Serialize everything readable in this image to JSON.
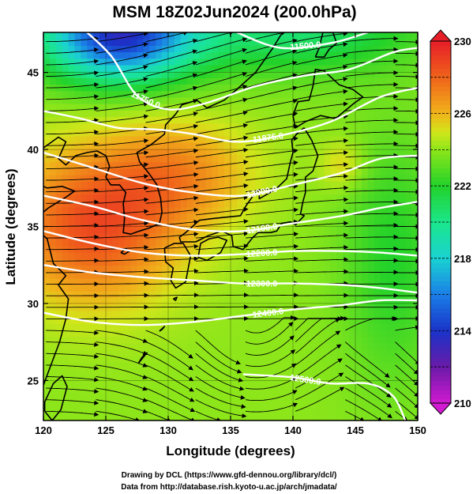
{
  "title": "MSM 18Z02Jun2024 (200.0hPa)",
  "xlabel": "Longitude (degrees)",
  "ylabel": "Latitude  (degrees)",
  "footer": {
    "line1": "Drawing by DCL (https://www.gfd-dennou.org/library/dcl/)",
    "line2": "Data from http://database.rish.kyoto-u.ac.jp/arch/jmadata/"
  },
  "chart_data": {
    "type": "heatmap",
    "title": "MSM 18Z02Jun2024 (200.0hPa)",
    "xlabel": "Longitude (degrees)",
    "ylabel": "Latitude  (degrees)",
    "xlim": [
      120,
      150
    ],
    "ylim": [
      22.4,
      47.6
    ],
    "x_ticks": [
      120,
      125,
      130,
      135,
      140,
      145,
      150
    ],
    "y_ticks": [
      25,
      30,
      35,
      40,
      45
    ],
    "colorbar": {
      "min": 210,
      "max": 230,
      "ticks": [
        210,
        214,
        218,
        222,
        226,
        230
      ],
      "stops": [
        {
          "value": 210,
          "color": "#d21ad2"
        },
        {
          "value": 212,
          "color": "#6a1aa8"
        },
        {
          "value": 214,
          "color": "#1a32c8"
        },
        {
          "value": 216,
          "color": "#1a7ee6"
        },
        {
          "value": 218,
          "color": "#1ad2d2"
        },
        {
          "value": 220,
          "color": "#1ae68c"
        },
        {
          "value": 222,
          "color": "#22d22a"
        },
        {
          "value": 224,
          "color": "#8ce61a"
        },
        {
          "value": 225,
          "color": "#d2e61a"
        },
        {
          "value": 226,
          "color": "#f0b41a"
        },
        {
          "value": 228,
          "color": "#f0641a"
        },
        {
          "value": 230,
          "color": "#e61e28"
        }
      ]
    },
    "temperature_field": {
      "base": 224,
      "features": [
        {
          "name": "warm-ridge",
          "lon": 124,
          "lat": 35,
          "amplitude": 4.6,
          "sigma_lon": 7,
          "sigma_lat": 5
        },
        {
          "name": "warm-ridge-east",
          "lon": 131,
          "lat": 38.5,
          "amplitude": 2.6,
          "sigma_lon": 6,
          "sigma_lat": 3.5
        },
        {
          "name": "cold-trough",
          "lon": 126,
          "lat": 47.5,
          "amplitude": -10,
          "sigma_lon": 6,
          "sigma_lat": 3
        },
        {
          "name": "cold-north",
          "lon": 140,
          "lat": 48,
          "amplitude": -3.5,
          "sigma_lon": 10,
          "sigma_lat": 3
        },
        {
          "name": "cool-east",
          "lon": 148,
          "lat": 33,
          "amplitude": -2,
          "sigma_lon": 4,
          "sigma_lat": 8
        },
        {
          "name": "warm-spot-east",
          "lon": 144,
          "lat": 39,
          "amplitude": 1.6,
          "sigma_lon": 1.8,
          "sigma_lat": 1.6
        }
      ]
    },
    "height_contours": [
      {
        "label": "11500.0",
        "points": [
          [
            135.5,
            47.6
          ],
          [
            139,
            46.6
          ],
          [
            143,
            46.9
          ],
          [
            146,
            47.6
          ]
        ]
      },
      {
        "label": "11750.0",
        "points": [
          [
            123.5,
            47.6
          ],
          [
            125.5,
            46
          ],
          [
            127.5,
            43.5
          ],
          [
            130,
            42.6
          ],
          [
            133,
            43
          ],
          [
            137,
            44.1
          ],
          [
            141,
            44.8
          ],
          [
            144.5,
            45.2
          ],
          [
            148,
            46.3
          ],
          [
            150,
            46.6
          ]
        ]
      },
      {
        "label": "11875.0",
        "points": [
          [
            120,
            42.5
          ],
          [
            123,
            42
          ],
          [
            126,
            41.4
          ],
          [
            129,
            41.3
          ],
          [
            132,
            41
          ],
          [
            135.5,
            40.5
          ],
          [
            139,
            40.9
          ],
          [
            143,
            41.8
          ],
          [
            147,
            43.4
          ],
          [
            150,
            44
          ]
        ]
      },
      {
        "label": "12000.0",
        "points": [
          [
            120,
            39.8
          ],
          [
            124,
            38.8
          ],
          [
            128,
            37.8
          ],
          [
            132,
            37.2
          ],
          [
            136,
            37
          ],
          [
            140,
            37.7
          ],
          [
            144,
            38.5
          ],
          [
            147,
            39.4
          ],
          [
            150,
            39.6
          ]
        ]
      },
      {
        "label": "12100.0",
        "points": [
          [
            120,
            37
          ],
          [
            124,
            36.3
          ],
          [
            128,
            35.4
          ],
          [
            132,
            34.8
          ],
          [
            136,
            34.7
          ],
          [
            140,
            35.2
          ],
          [
            144,
            35.7
          ],
          [
            147,
            36.2
          ],
          [
            150,
            36.6
          ]
        ]
      },
      {
        "label": "12200.0",
        "points": [
          [
            120,
            34.7
          ],
          [
            124,
            33.9
          ],
          [
            128,
            33.3
          ],
          [
            132,
            33.1
          ],
          [
            136,
            33.2
          ],
          [
            140,
            33.4
          ],
          [
            144,
            33.4
          ],
          [
            147,
            33.3
          ],
          [
            150,
            33.1
          ]
        ]
      },
      {
        "label": "12300.0",
        "points": [
          [
            120,
            32.5
          ],
          [
            124,
            32
          ],
          [
            128,
            31.7
          ],
          [
            132,
            31.5
          ],
          [
            136,
            31.3
          ],
          [
            140,
            31.3
          ],
          [
            144,
            31.2
          ],
          [
            147,
            31
          ],
          [
            150,
            30.7
          ]
        ]
      },
      {
        "label": "12400.0",
        "points": [
          [
            120,
            29.4
          ],
          [
            124,
            28.8
          ],
          [
            128,
            28.6
          ],
          [
            132,
            28.8
          ],
          [
            136,
            29.2
          ],
          [
            140,
            29.6
          ],
          [
            144,
            29.9
          ],
          [
            147,
            30.2
          ],
          [
            150,
            30.2
          ]
        ]
      },
      {
        "label": "12500.0",
        "points": [
          [
            136,
            25.4
          ],
          [
            140,
            25.2
          ],
          [
            143,
            24.8
          ],
          [
            146,
            24.8
          ],
          [
            148,
            24
          ],
          [
            149,
            22.4
          ]
        ]
      }
    ],
    "wind_field": {
      "jet_axis": [
        [
          120,
          41.5
        ],
        [
          126,
          40.5
        ],
        [
          132,
          39.8
        ],
        [
          138,
          39.8
        ],
        [
          144,
          41
        ],
        [
          150,
          42
        ]
      ],
      "description": "westerly streamlines with a jet over Korea/Japan; anticyclonic turning south of 28N"
    },
    "coastline": "Japan, Korea, China and Russian Far East coastlines"
  }
}
